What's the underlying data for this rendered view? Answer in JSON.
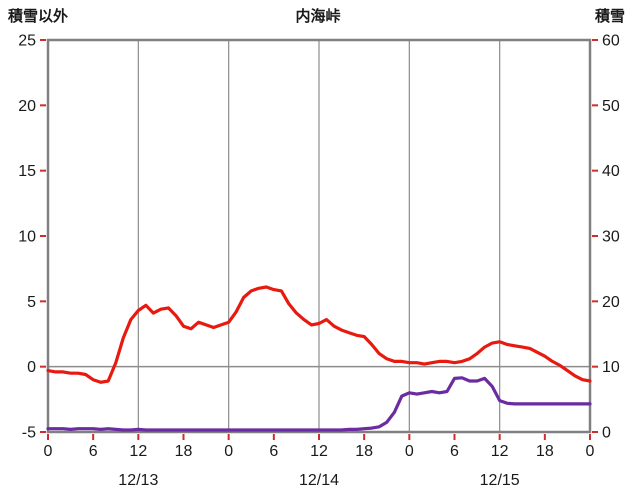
{
  "header": {
    "left_axis_title": "積雪以外",
    "chart_title": "内海峠",
    "right_axis_title": "積雪"
  },
  "chart_data": {
    "type": "line",
    "title": "内海峠",
    "x_unit": "hour",
    "x_range": [
      0,
      72
    ],
    "x_ticks": {
      "hours": [
        0,
        6,
        12,
        18,
        24,
        30,
        36,
        42,
        48,
        54,
        60,
        66,
        72
      ],
      "labels": [
        "0",
        "6",
        "12",
        "18",
        "0",
        "6",
        "12",
        "18",
        "0",
        "6",
        "12",
        "18",
        "0"
      ]
    },
    "dates": [
      {
        "label": "12/13",
        "center_hour": 12
      },
      {
        "label": "12/14",
        "center_hour": 36
      },
      {
        "label": "12/15",
        "center_hour": 60
      }
    ],
    "left_axis": {
      "title": "積雪以外",
      "min": -5,
      "max": 25,
      "ticks": [
        25,
        20,
        15,
        10,
        5,
        0,
        -5
      ]
    },
    "right_axis": {
      "title": "積雪",
      "min": 0,
      "max": 60,
      "ticks": [
        60,
        50,
        40,
        30,
        20,
        10,
        0
      ]
    },
    "grid": {
      "vertical_hours": [
        12,
        24,
        36,
        48,
        60
      ],
      "horizontal_left_values": [
        0
      ],
      "grid_on": true,
      "legend": "none"
    },
    "series": [
      {
        "key": "non-snow",
        "name": "積雪以外",
        "axis": "left",
        "color": "#e8190f",
        "values": [
          -0.3,
          -0.4,
          -0.4,
          -0.5,
          -0.5,
          -0.6,
          -1.0,
          -1.2,
          -1.1,
          0.3,
          2.2,
          3.6,
          4.3,
          4.7,
          4.1,
          4.4,
          4.5,
          3.9,
          3.1,
          2.9,
          3.4,
          3.2,
          3.0,
          3.2,
          3.4,
          4.2,
          5.3,
          5.8,
          6.0,
          6.1,
          5.9,
          5.8,
          4.8,
          4.1,
          3.6,
          3.2,
          3.3,
          3.6,
          3.1,
          2.8,
          2.6,
          2.4,
          2.3,
          1.7,
          1.0,
          0.6,
          0.4,
          0.4,
          0.3,
          0.3,
          0.2,
          0.3,
          0.4,
          0.4,
          0.3,
          0.4,
          0.6,
          1.0,
          1.5,
          1.8,
          1.9,
          1.7,
          1.6,
          1.5,
          1.4,
          1.1,
          0.8,
          0.4,
          0.1,
          -0.3,
          -0.7,
          -1.0,
          -1.1
        ]
      },
      {
        "key": "snow",
        "name": "積雪",
        "axis": "right",
        "color": "#6a2ca0",
        "values": [
          0.5,
          0.5,
          0.5,
          0.4,
          0.5,
          0.5,
          0.5,
          0.4,
          0.5,
          0.4,
          0.3,
          0.3,
          0.4,
          0.3,
          0.3,
          0.3,
          0.3,
          0.3,
          0.3,
          0.3,
          0.3,
          0.3,
          0.3,
          0.3,
          0.3,
          0.3,
          0.3,
          0.3,
          0.3,
          0.3,
          0.3,
          0.3,
          0.3,
          0.3,
          0.3,
          0.3,
          0.3,
          0.3,
          0.3,
          0.3,
          0.4,
          0.4,
          0.5,
          0.6,
          0.8,
          1.5,
          3.0,
          5.5,
          6.0,
          5.8,
          6.0,
          6.2,
          6.0,
          6.2,
          8.2,
          8.3,
          7.8,
          7.8,
          8.2,
          7.0,
          4.8,
          4.4,
          4.3,
          4.3,
          4.3,
          4.3,
          4.3,
          4.3,
          4.3,
          4.3,
          4.3,
          4.3,
          4.3
        ]
      }
    ],
    "colors": {
      "grid": "#8c8c8c",
      "border": "#808080",
      "tick": "#d22b2b",
      "text": "#1a1a1a"
    }
  }
}
